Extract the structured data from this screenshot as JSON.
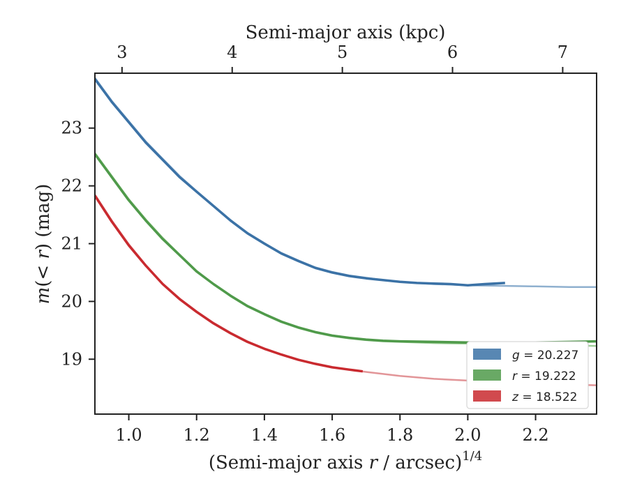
{
  "chart_data": {
    "type": "line",
    "xlabel_pre": "(Semi-major axis ",
    "xlabel_var": "r",
    "xlabel_post": " / arcsec)",
    "xlabel_exp": "1/4",
    "ylabel_m": "m",
    "ylabel_mid": "(< ",
    "ylabel_r": "r",
    "ylabel_post": ") (mag)",
    "top_xlabel": "Semi-major axis (kpc)",
    "xlim": [
      0.9,
      2.38
    ],
    "ylim": [
      23.95,
      18.05
    ],
    "x_ticks": [
      "1.0",
      "1.2",
      "1.4",
      "1.6",
      "1.8",
      "2.0",
      "2.2"
    ],
    "y_ticks": [
      "19",
      "20",
      "21",
      "22",
      "23"
    ],
    "top_ticks": [
      "3",
      "4",
      "5",
      "6",
      "7"
    ],
    "top_tick_positions_data": [
      0.98,
      1.305,
      1.63,
      1.955,
      2.28
    ],
    "grid": false,
    "legend_position": "lower-right",
    "series": [
      {
        "name": "g = 20.227",
        "legend_var": "g",
        "legend_value": "= 20.227",
        "color": "#3b72a6",
        "model_color": "#8fb0cf",
        "observed": [
          [
            0.9,
            23.85
          ],
          [
            0.95,
            23.45
          ],
          [
            1.0,
            23.1
          ],
          [
            1.05,
            22.75
          ],
          [
            1.1,
            22.45
          ],
          [
            1.15,
            22.15
          ],
          [
            1.2,
            21.9
          ],
          [
            1.25,
            21.65
          ],
          [
            1.3,
            21.4
          ],
          [
            1.35,
            21.18
          ],
          [
            1.4,
            21.0
          ],
          [
            1.45,
            20.83
          ],
          [
            1.5,
            20.7
          ],
          [
            1.55,
            20.58
          ],
          [
            1.6,
            20.5
          ],
          [
            1.65,
            20.44
          ],
          [
            1.7,
            20.4
          ],
          [
            1.75,
            20.37
          ],
          [
            1.8,
            20.34
          ],
          [
            1.85,
            20.32
          ],
          [
            1.9,
            20.31
          ],
          [
            1.95,
            20.3
          ],
          [
            2.0,
            20.28
          ],
          [
            2.05,
            20.3
          ],
          [
            2.11,
            20.32
          ]
        ],
        "model": [
          [
            0.9,
            23.87
          ],
          [
            0.95,
            23.47
          ],
          [
            1.0,
            23.12
          ],
          [
            1.05,
            22.77
          ],
          [
            1.1,
            22.47
          ],
          [
            1.15,
            22.17
          ],
          [
            1.2,
            21.91
          ],
          [
            1.25,
            21.66
          ],
          [
            1.3,
            21.41
          ],
          [
            1.35,
            21.19
          ],
          [
            1.4,
            21.01
          ],
          [
            1.45,
            20.84
          ],
          [
            1.5,
            20.71
          ],
          [
            1.55,
            20.59
          ],
          [
            1.6,
            20.51
          ],
          [
            1.65,
            20.45
          ],
          [
            1.7,
            20.41
          ],
          [
            1.75,
            20.37
          ],
          [
            1.8,
            20.34
          ],
          [
            1.85,
            20.32
          ],
          [
            1.9,
            20.3
          ],
          [
            1.95,
            20.29
          ],
          [
            2.0,
            20.28
          ],
          [
            2.1,
            20.27
          ],
          [
            2.2,
            20.26
          ],
          [
            2.3,
            20.25
          ],
          [
            2.38,
            20.25
          ]
        ]
      },
      {
        "name": "r = 19.222",
        "legend_var": "r",
        "legend_value": "= 19.222",
        "color": "#4f9a4a",
        "model_color": "#9fcf98",
        "observed": [
          [
            0.9,
            22.55
          ],
          [
            0.95,
            22.15
          ],
          [
            1.0,
            21.75
          ],
          [
            1.05,
            21.4
          ],
          [
            1.1,
            21.08
          ],
          [
            1.15,
            20.8
          ],
          [
            1.2,
            20.52
          ],
          [
            1.25,
            20.3
          ],
          [
            1.3,
            20.1
          ],
          [
            1.35,
            19.92
          ],
          [
            1.4,
            19.78
          ],
          [
            1.45,
            19.65
          ],
          [
            1.5,
            19.55
          ],
          [
            1.55,
            19.47
          ],
          [
            1.6,
            19.41
          ],
          [
            1.65,
            19.37
          ],
          [
            1.7,
            19.34
          ],
          [
            1.75,
            19.32
          ],
          [
            1.8,
            19.31
          ],
          [
            1.9,
            19.3
          ],
          [
            2.0,
            19.29
          ],
          [
            2.1,
            19.28
          ],
          [
            2.2,
            19.29
          ],
          [
            2.3,
            19.3
          ],
          [
            2.38,
            19.31
          ]
        ],
        "model": [
          [
            0.9,
            22.57
          ],
          [
            0.95,
            22.17
          ],
          [
            1.0,
            21.77
          ],
          [
            1.05,
            21.42
          ],
          [
            1.1,
            21.1
          ],
          [
            1.15,
            20.81
          ],
          [
            1.2,
            20.53
          ],
          [
            1.25,
            20.3
          ],
          [
            1.3,
            20.09
          ],
          [
            1.35,
            19.91
          ],
          [
            1.4,
            19.77
          ],
          [
            1.45,
            19.64
          ],
          [
            1.5,
            19.54
          ],
          [
            1.55,
            19.46
          ],
          [
            1.6,
            19.4
          ],
          [
            1.65,
            19.36
          ],
          [
            1.7,
            19.33
          ],
          [
            1.75,
            19.31
          ],
          [
            1.8,
            19.3
          ],
          [
            1.9,
            19.28
          ],
          [
            2.0,
            19.27
          ],
          [
            2.1,
            19.26
          ],
          [
            2.2,
            19.25
          ],
          [
            2.3,
            19.24
          ],
          [
            2.38,
            19.23
          ]
        ]
      },
      {
        "name": "z = 18.522",
        "legend_var": "z",
        "legend_value": "= 18.522",
        "color": "#c92a2f",
        "model_color": "#e29598",
        "observed": [
          [
            0.9,
            21.83
          ],
          [
            0.95,
            21.38
          ],
          [
            1.0,
            20.97
          ],
          [
            1.05,
            20.62
          ],
          [
            1.1,
            20.3
          ],
          [
            1.15,
            20.04
          ],
          [
            1.2,
            19.82
          ],
          [
            1.25,
            19.62
          ],
          [
            1.3,
            19.45
          ],
          [
            1.35,
            19.3
          ],
          [
            1.4,
            19.18
          ],
          [
            1.45,
            19.08
          ],
          [
            1.5,
            18.99
          ],
          [
            1.55,
            18.92
          ],
          [
            1.6,
            18.86
          ],
          [
            1.65,
            18.82
          ],
          [
            1.69,
            18.79
          ]
        ],
        "model": [
          [
            0.9,
            21.85
          ],
          [
            0.95,
            21.4
          ],
          [
            1.0,
            20.99
          ],
          [
            1.05,
            20.63
          ],
          [
            1.1,
            20.31
          ],
          [
            1.15,
            20.05
          ],
          [
            1.2,
            19.83
          ],
          [
            1.25,
            19.63
          ],
          [
            1.3,
            19.46
          ],
          [
            1.35,
            19.31
          ],
          [
            1.4,
            19.18
          ],
          [
            1.45,
            19.08
          ],
          [
            1.5,
            18.99
          ],
          [
            1.55,
            18.92
          ],
          [
            1.6,
            18.86
          ],
          [
            1.7,
            18.78
          ],
          [
            1.8,
            18.71
          ],
          [
            1.9,
            18.66
          ],
          [
            2.0,
            18.63
          ],
          [
            2.1,
            18.6
          ],
          [
            2.2,
            18.58
          ],
          [
            2.3,
            18.56
          ],
          [
            2.38,
            18.55
          ]
        ]
      }
    ]
  }
}
